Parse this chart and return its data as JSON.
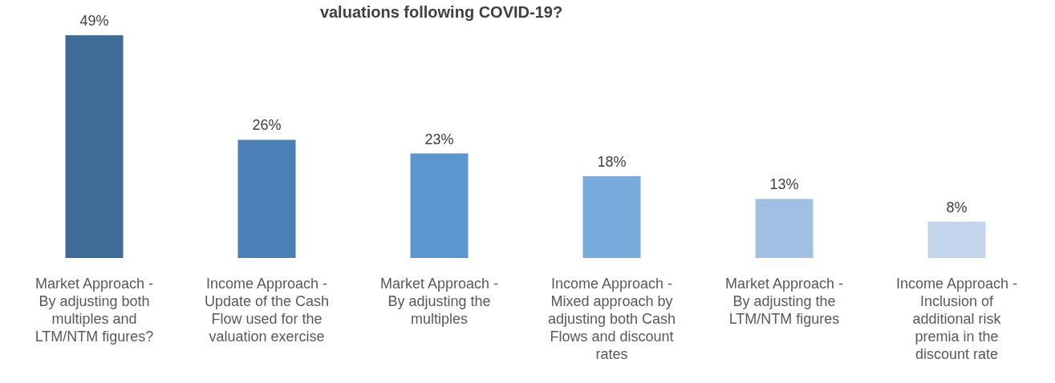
{
  "chart_data": {
    "type": "bar",
    "title": "valuations following COVID-19?",
    "categories": [
      "Market Approach - By adjusting both multiples and LTM/NTM figures?",
      "Income Approach - Update of the Cash Flow used for the valuation exercise",
      "Market Approach - By adjusting the multiples",
      "Income Approach - Mixed approach by adjusting both Cash Flows and discount rates",
      "Market Approach - By adjusting the LTM/NTM figures",
      "Income Approach - Inclusion of additional risk premia in the discount rate"
    ],
    "values": [
      49,
      26,
      23,
      18,
      13,
      8
    ],
    "colors": [
      "#3f6b98",
      "#4a80b6",
      "#5a96cf",
      "#7aabdd",
      "#a2c0e4",
      "#c2d5ed"
    ],
    "value_labels": [
      "49%",
      "26%",
      "23%",
      "18%",
      "13%",
      "8%"
    ]
  }
}
